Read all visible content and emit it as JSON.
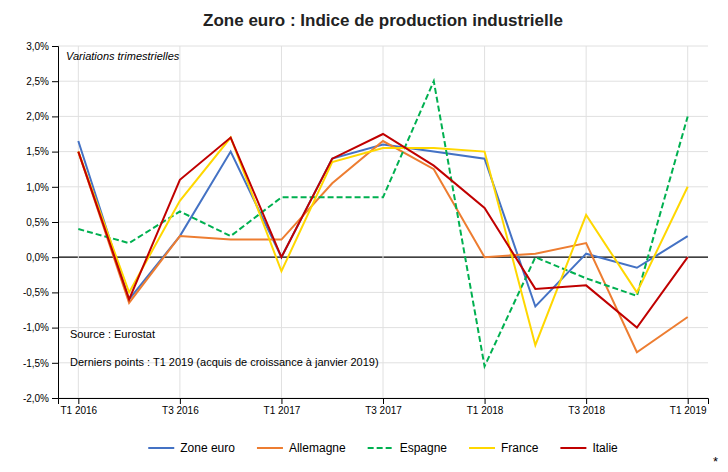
{
  "chart_data": {
    "type": "line",
    "title": "Zone euro : Indice de production industrielle",
    "subtitle": "Variations trimestrielles",
    "annotations": [
      "Source : Eurostat",
      "Derniers points : T1 2019 (acquis de croissance à janvier 2019)",
      "*"
    ],
    "categories": [
      "T1 2016",
      null,
      "T3 2016",
      null,
      "T1 2017",
      null,
      "T3 2017",
      null,
      "T1 2018",
      null,
      "T3 2018",
      null,
      "T1 2019"
    ],
    "series": [
      {
        "name": "Zone euro",
        "color": "#4472C4",
        "values": [
          1.65,
          -0.6,
          0.3,
          1.5,
          0.0,
          1.4,
          1.6,
          1.5,
          1.4,
          -0.7,
          0.05,
          -0.15,
          0.3
        ]
      },
      {
        "name": "Allemagne",
        "color": "#ED7D31",
        "values": [
          1.5,
          -0.65,
          0.3,
          0.25,
          0.25,
          1.05,
          1.65,
          1.25,
          0.0,
          0.05,
          0.2,
          -1.35,
          -0.85
        ]
      },
      {
        "name": "Espagne",
        "color": "#00B050",
        "line_style": "dashed",
        "values": [
          0.4,
          0.2,
          0.65,
          0.3,
          0.85,
          0.85,
          0.85,
          2.5,
          -1.55,
          0.0,
          -0.3,
          -0.55,
          2.0
        ]
      },
      {
        "name": "France",
        "color": "#FFD700",
        "values": [
          1.5,
          -0.5,
          0.8,
          1.7,
          -0.2,
          1.35,
          1.55,
          1.55,
          1.5,
          -1.25,
          0.6,
          -0.5,
          1.0
        ]
      },
      {
        "name": "Italie",
        "color": "#C00000",
        "values": [
          1.5,
          -0.6,
          1.1,
          1.7,
          0.0,
          1.4,
          1.75,
          1.3,
          0.7,
          -0.45,
          -0.4,
          -1.0,
          0.0
        ]
      }
    ],
    "ylim": [
      -2.0,
      3.0
    ],
    "yticks": [
      {
        "value": -2.0,
        "label": "-2,0%"
      },
      {
        "value": -1.5,
        "label": "-1,5%"
      },
      {
        "value": -1.0,
        "label": "-1,0%"
      },
      {
        "value": -0.5,
        "label": "-0,5%"
      },
      {
        "value": 0.0,
        "label": "0,0%"
      },
      {
        "value": 0.5,
        "label": "0,5%"
      },
      {
        "value": 1.0,
        "label": "1,0%"
      },
      {
        "value": 1.5,
        "label": "1,5%"
      },
      {
        "value": 2.0,
        "label": "2,0%"
      },
      {
        "value": 2.5,
        "label": "2,5%"
      },
      {
        "value": 3.0,
        "label": "3,0%"
      }
    ],
    "grid": true,
    "legend": "bottom"
  }
}
